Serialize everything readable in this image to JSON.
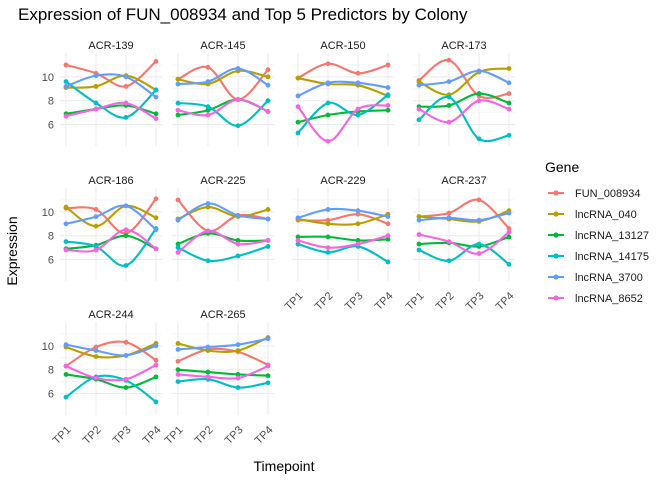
{
  "chart_data": {
    "type": "line",
    "title": "Expression of FUN_008934 and Top 5 Predictors by Colony",
    "xlabel": "Timepoint",
    "ylabel": "Expression",
    "categories": [
      "TP1",
      "TP2",
      "TP3",
      "TP4"
    ],
    "ylim": [
      4.2,
      12.0
    ],
    "yticks": [
      6,
      8,
      10
    ],
    "grid": true,
    "legend": {
      "title": "Gene",
      "position": "right"
    },
    "genes": [
      {
        "name": "FUN_008934",
        "color": "#F8766D"
      },
      {
        "name": "lncRNA_040",
        "color": "#B79F00"
      },
      {
        "name": "lncRNA_13127",
        "color": "#00BA38"
      },
      {
        "name": "lncRNA_14175",
        "color": "#00BFC4"
      },
      {
        "name": "lncRNA_3700",
        "color": "#619CFF"
      },
      {
        "name": "lncRNA_8652",
        "color": "#F564E3"
      }
    ],
    "panels": [
      {
        "title": "ACR-139",
        "series": {
          "FUN_008934": [
            11.0,
            10.3,
            9.2,
            11.3
          ],
          "lncRNA_040": [
            9.1,
            9.2,
            10.1,
            8.9
          ],
          "lncRNA_13127": [
            6.9,
            7.3,
            7.6,
            6.9
          ],
          "lncRNA_14175": [
            9.6,
            7.8,
            6.6,
            8.9
          ],
          "lncRNA_3700": [
            9.2,
            10.1,
            10.0,
            8.3
          ],
          "lncRNA_8652": [
            6.7,
            7.3,
            7.8,
            6.5
          ]
        }
      },
      {
        "title": "ACR-145",
        "series": {
          "FUN_008934": [
            9.8,
            10.8,
            8.1,
            10.6
          ],
          "lncRNA_040": [
            9.8,
            9.4,
            10.5,
            10.0
          ],
          "lncRNA_13127": [
            6.8,
            7.2,
            8.1,
            7.1
          ],
          "lncRNA_14175": [
            7.8,
            7.5,
            5.9,
            8.0
          ],
          "lncRNA_3700": [
            9.4,
            9.6,
            10.7,
            9.3
          ],
          "lncRNA_8652": [
            7.2,
            6.8,
            8.1,
            7.1
          ]
        }
      },
      {
        "title": "ACR-150",
        "series": {
          "FUN_008934": [
            9.9,
            11.1,
            10.3,
            11.0
          ],
          "lncRNA_040": [
            9.9,
            9.4,
            9.3,
            8.4
          ],
          "lncRNA_13127": [
            6.2,
            6.8,
            7.1,
            7.2
          ],
          "lncRNA_14175": [
            5.3,
            7.8,
            6.8,
            8.5
          ],
          "lncRNA_3700": [
            8.4,
            9.5,
            9.5,
            9.1
          ],
          "lncRNA_8652": [
            7.5,
            4.6,
            7.3,
            7.6
          ]
        }
      },
      {
        "title": "ACR-173",
        "series": {
          "FUN_008934": [
            9.7,
            11.4,
            8.4,
            8.6
          ],
          "lncRNA_040": [
            9.6,
            8.5,
            10.4,
            10.7
          ],
          "lncRNA_13127": [
            7.5,
            7.6,
            8.6,
            7.8
          ],
          "lncRNA_14175": [
            6.4,
            8.3,
            4.8,
            5.1
          ],
          "lncRNA_3700": [
            9.3,
            9.6,
            10.5,
            9.5
          ],
          "lncRNA_8652": [
            7.3,
            6.2,
            8.0,
            7.3
          ]
        }
      },
      {
        "title": "ACR-186",
        "series": {
          "FUN_008934": [
            10.3,
            10.2,
            8.2,
            11.1
          ],
          "lncRNA_040": [
            10.4,
            8.8,
            10.5,
            9.5
          ],
          "lncRNA_13127": [
            6.9,
            7.2,
            8.0,
            6.9
          ],
          "lncRNA_14175": [
            7.5,
            7.1,
            5.5,
            8.6
          ],
          "lncRNA_3700": [
            9.0,
            9.6,
            10.5,
            8.5
          ],
          "lncRNA_8652": [
            6.8,
            6.8,
            8.5,
            6.9
          ]
        }
      },
      {
        "title": "ACR-225",
        "series": {
          "FUN_008934": [
            11.0,
            8.4,
            9.7,
            9.4
          ],
          "lncRNA_040": [
            9.4,
            10.4,
            9.6,
            10.2
          ],
          "lncRNA_13127": [
            7.3,
            8.2,
            7.6,
            7.6
          ],
          "lncRNA_14175": [
            7.0,
            5.9,
            6.3,
            7.1
          ],
          "lncRNA_3700": [
            9.3,
            10.7,
            9.7,
            9.4
          ],
          "lncRNA_8652": [
            6.6,
            8.4,
            7.3,
            7.6
          ]
        }
      },
      {
        "title": "ACR-229",
        "series": {
          "FUN_008934": [
            9.3,
            9.3,
            9.8,
            9.0
          ],
          "lncRNA_040": [
            9.4,
            9.0,
            9.0,
            9.8
          ],
          "lncRNA_13127": [
            7.9,
            7.9,
            7.6,
            7.7
          ],
          "lncRNA_14175": [
            7.3,
            6.6,
            7.1,
            5.8
          ],
          "lncRNA_3700": [
            9.5,
            10.2,
            10.1,
            9.6
          ],
          "lncRNA_8652": [
            7.6,
            7.0,
            7.3,
            8.0
          ]
        }
      },
      {
        "title": "ACR-237",
        "series": {
          "FUN_008934": [
            9.6,
            9.9,
            11.0,
            8.6
          ],
          "lncRNA_040": [
            9.6,
            9.4,
            9.2,
            10.1
          ],
          "lncRNA_13127": [
            7.3,
            7.4,
            7.1,
            7.9
          ],
          "lncRNA_14175": [
            6.8,
            5.9,
            7.3,
            5.6
          ],
          "lncRNA_3700": [
            9.3,
            9.5,
            9.3,
            9.9
          ],
          "lncRNA_8652": [
            8.1,
            7.5,
            6.5,
            8.3
          ]
        }
      },
      {
        "title": "ACR-244",
        "series": {
          "FUN_008934": [
            8.3,
            9.9,
            10.3,
            8.8
          ],
          "lncRNA_040": [
            9.9,
            9.1,
            9.2,
            10.2
          ],
          "lncRNA_13127": [
            7.6,
            7.2,
            6.5,
            7.4
          ],
          "lncRNA_14175": [
            5.7,
            7.4,
            7.1,
            5.3
          ],
          "lncRNA_3700": [
            10.1,
            9.6,
            9.2,
            10.0
          ],
          "lncRNA_8652": [
            8.3,
            7.3,
            7.2,
            8.4
          ]
        }
      },
      {
        "title": "ACR-265",
        "series": {
          "FUN_008934": [
            8.7,
            9.7,
            9.5,
            8.4
          ],
          "lncRNA_040": [
            10.2,
            9.6,
            9.6,
            10.7
          ],
          "lncRNA_13127": [
            8.0,
            7.8,
            7.6,
            7.5
          ],
          "lncRNA_14175": [
            7.0,
            7.2,
            6.5,
            6.9
          ],
          "lncRNA_3700": [
            9.7,
            9.9,
            10.1,
            10.6
          ],
          "lncRNA_8652": [
            7.6,
            7.4,
            7.3,
            8.3
          ]
        }
      }
    ]
  }
}
